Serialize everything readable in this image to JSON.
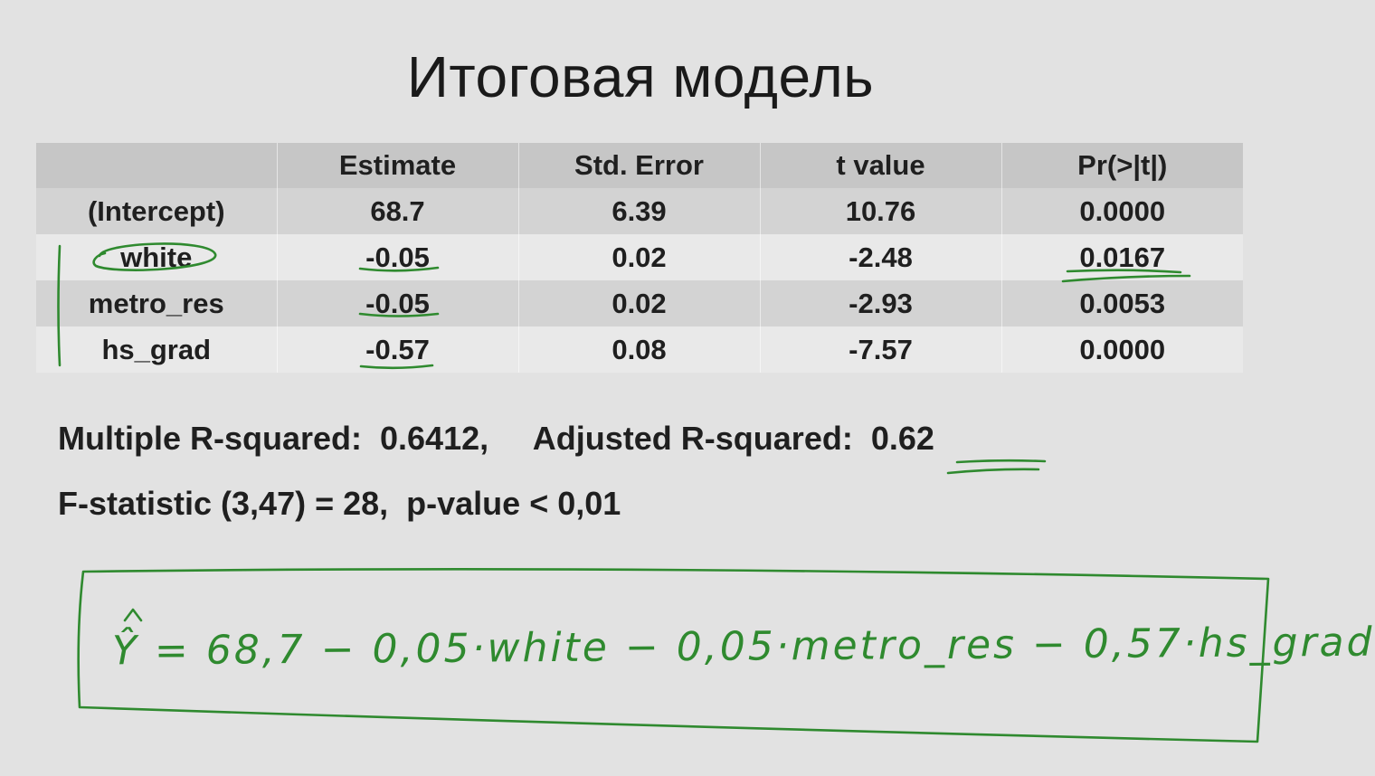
{
  "title": "Итоговая модель",
  "table": {
    "headers": [
      "",
      "Estimate",
      "Std. Error",
      "t value",
      "Pr(>|t|)"
    ],
    "rows": [
      [
        "(Intercept)",
        "68.7",
        "6.39",
        "10.76",
        "0.0000"
      ],
      [
        "white",
        "-0.05",
        "0.02",
        "-2.48",
        "0.0167"
      ],
      [
        "metro_res",
        "-0.05",
        "0.02",
        "-2.93",
        "0.0053"
      ],
      [
        "hs_grad",
        "-0.57",
        "0.08",
        "-7.57",
        "0.0000"
      ]
    ]
  },
  "stats": {
    "line1": "Multiple R-squared:  0.6412,     Adjusted R-squared:  0.62",
    "line2": "F-statistic (3,47) = 28,  p-value < 0,01"
  },
  "handwritten_equation": "Ŷ =  68,7 − 0,05·white − 0,05·metro_res − 0,57·hs_grad",
  "colors": {
    "background": "#e2e2e2",
    "header_row": "#c6c6c6",
    "row_dark": "#d3d3d3",
    "row_light": "#e9e9e9",
    "ink": "#2f8a2f"
  }
}
